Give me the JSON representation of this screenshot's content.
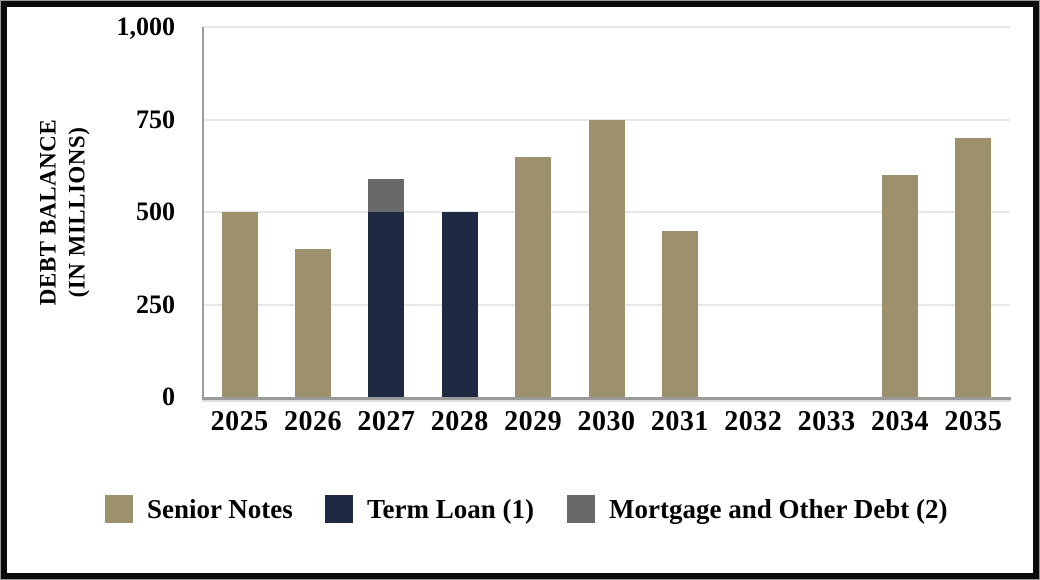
{
  "chart_data": {
    "type": "bar",
    "stacked": true,
    "title": "",
    "categories": [
      "2025",
      "2026",
      "2027",
      "2028",
      "2029",
      "2030",
      "2031",
      "2032",
      "2033",
      "2034",
      "2035"
    ],
    "series": [
      {
        "name": "Senior Notes",
        "color": "#9c916c",
        "values": [
          500,
          400,
          0,
          0,
          650,
          750,
          450,
          0,
          0,
          600,
          700
        ]
      },
      {
        "name": "Term Loan (1)",
        "color": "#1e2a42",
        "values": [
          0,
          0,
          500,
          500,
          0,
          0,
          0,
          0,
          0,
          0,
          0
        ]
      },
      {
        "name": "Mortgage and Other Debt (2)",
        "color": "#696969",
        "values": [
          0,
          0,
          90,
          0,
          0,
          0,
          0,
          0,
          0,
          0,
          0
        ]
      }
    ],
    "xlabel": "",
    "ylabel_line1": "DEBT BALANCE",
    "ylabel_line2": "(IN MILLIONS)",
    "ylim": [
      0,
      1000
    ],
    "yticks": [
      {
        "value": 0,
        "label": "0"
      },
      {
        "value": 250,
        "label": "250"
      },
      {
        "value": 500,
        "label": "500"
      },
      {
        "value": 750,
        "label": "750"
      },
      {
        "value": 1000,
        "label": "1,000"
      }
    ],
    "grid": true,
    "legend_position": "bottom",
    "legend": [
      {
        "label": "Senior Notes",
        "color": "#9c916c"
      },
      {
        "label": "Term Loan (1)",
        "color": "#1e2a42"
      },
      {
        "label": "Mortgage and Other Debt (2)",
        "color": "#696969"
      }
    ]
  },
  "colors": {
    "background": "#ffffff",
    "frame": "#0b0b0b",
    "frame_outer": "#9a9a9a",
    "grid": "#e7e7e7",
    "axis": "#9b9b9b",
    "text": "#000000"
  }
}
